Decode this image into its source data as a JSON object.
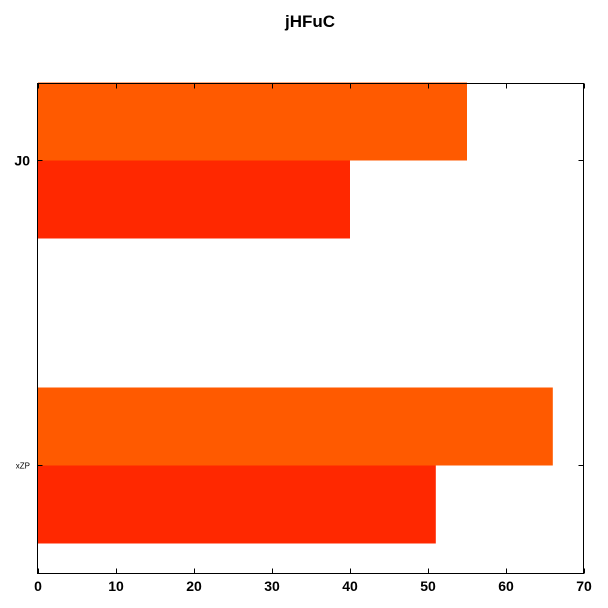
{
  "chart_data": {
    "type": "bar",
    "orientation": "horizontal",
    "title": "jHFuC",
    "categories": [
      "J0",
      "xZP"
    ],
    "series": [
      {
        "values": [
          55,
          66
        ],
        "color": "#ff5a00"
      },
      {
        "values": [
          40,
          51
        ],
        "color": "#ff2800"
      }
    ],
    "xlim": [
      0,
      70
    ],
    "x_ticks": [
      0,
      10,
      20,
      30,
      40,
      50,
      60,
      70
    ],
    "grid": false,
    "xlabel": "",
    "ylabel": ""
  }
}
